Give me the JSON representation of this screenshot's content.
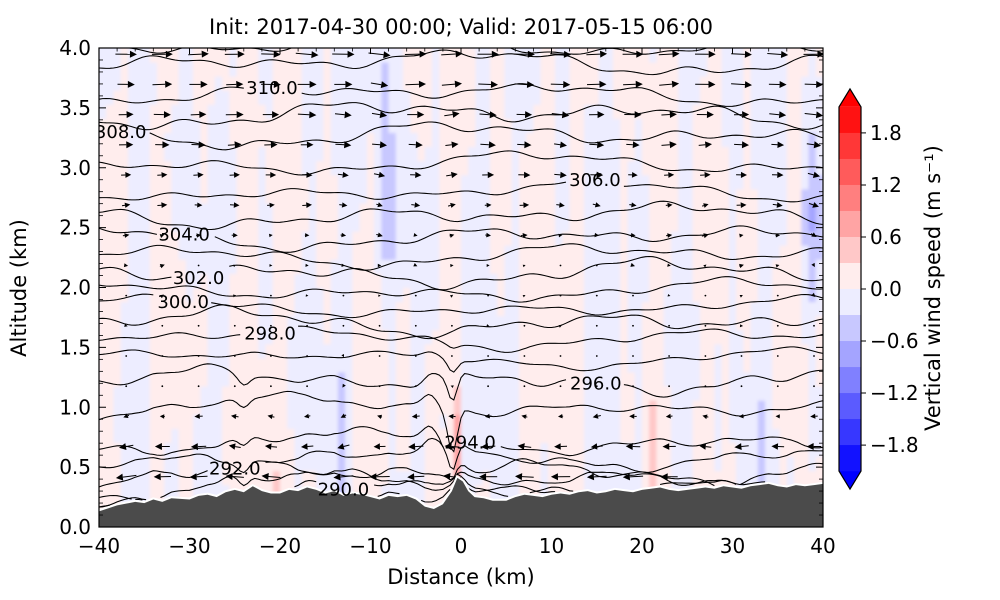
{
  "chart_data": {
    "type": "contour",
    "title": "Init: 2017-04-30 00:00; Valid: 2017-05-15 06:00",
    "xlabel": "Distance (km)",
    "ylabel": "Altitude (km)",
    "xlim": [
      -40,
      40
    ],
    "ylim": [
      0.0,
      4.0
    ],
    "grid": false,
    "xticks": {
      "values": [
        -40,
        -30,
        -20,
        -10,
        0,
        10,
        20,
        30,
        40
      ],
      "labels": [
        "−40",
        "−30",
        "−20",
        "−10",
        "0",
        "10",
        "20",
        "30",
        "40"
      ]
    },
    "yticks": {
      "values": [
        0.0,
        0.5,
        1.0,
        1.5,
        2.0,
        2.5,
        3.0,
        3.5,
        4.0
      ],
      "labels": [
        "0.0",
        "0.5",
        "1.0",
        "1.5",
        "2.0",
        "2.5",
        "3.0",
        "3.5",
        "4.0"
      ]
    },
    "contours": {
      "field": "potential temperature (K)",
      "interval": 1.0,
      "labeled_interval": 2.0,
      "level_altitudes_km": {
        "288": 0.18,
        "289": 0.24,
        "290": 0.3,
        "291": 0.375,
        "292": 0.45,
        "293": 0.57,
        "294": 0.7,
        "295": 1.0,
        "296": 1.22,
        "297": 1.41,
        "298": 1.58,
        "299": 1.71,
        "300": 1.83,
        "301": 1.97,
        "302": 2.12,
        "303": 2.27,
        "304": 2.42,
        "305": 2.6,
        "306": 2.8,
        "307": 3.03,
        "308": 3.27,
        "309": 3.45,
        "310": 3.62,
        "311": 3.88,
        "312": 4.02
      },
      "labels": [
        {
          "level": 290,
          "x_km": -13.0
        },
        {
          "level": 292,
          "x_km": -25.0
        },
        {
          "level": 294,
          "x_km": 1.0
        },
        {
          "level": 296,
          "x_km": 14.9
        },
        {
          "level": 298,
          "x_km": -21.1
        },
        {
          "level": 300,
          "x_km": -30.7
        },
        {
          "level": 302,
          "x_km": -29.0
        },
        {
          "level": 304,
          "x_km": -30.6
        },
        {
          "level": 306,
          "x_km": 14.8
        },
        {
          "level": 308,
          "x_km": -37.6
        },
        {
          "level": 310,
          "x_km": -20.9
        }
      ]
    },
    "shading": {
      "field": "vertical wind speed",
      "units": "m s⁻¹",
      "colormap": "blue-white-red",
      "level_step": 0.3,
      "vmin": -2.1,
      "vmax": 2.1,
      "features": [
        {
          "x": -8.5,
          "z": 2.7,
          "sx": 1.2,
          "sz": 0.7,
          "w": -0.5
        },
        {
          "x": -9.0,
          "z": 3.9,
          "sx": 1.0,
          "sz": 0.5,
          "w": -0.38
        },
        {
          "x": -1.6,
          "z": 0.9,
          "sx": 0.45,
          "sz": 0.28,
          "w": -0.55
        },
        {
          "x": -0.4,
          "z": 0.65,
          "sx": 0.3,
          "sz": 0.45,
          "w": 0.65
        },
        {
          "x": 39.0,
          "z": 2.5,
          "sx": 1.3,
          "sz": 0.8,
          "w": -0.5
        },
        {
          "x": 40.0,
          "z": 0.9,
          "sx": 1.2,
          "sz": 0.4,
          "w": -0.45
        }
      ]
    },
    "wind_arrows": {
      "u_profile_km_ms": [
        [
          0.42,
          -5.5
        ],
        [
          0.65,
          -4.2
        ],
        [
          0.85,
          -2.5
        ],
        [
          1.05,
          -0.8
        ],
        [
          1.3,
          0.2
        ],
        [
          1.6,
          0.3
        ],
        [
          1.9,
          0.5
        ],
        [
          2.2,
          0.9
        ],
        [
          2.5,
          1.7
        ],
        [
          2.8,
          2.8
        ],
        [
          3.1,
          3.8
        ],
        [
          3.4,
          4.8
        ],
        [
          3.7,
          5.6
        ],
        [
          4.0,
          6.3
        ]
      ],
      "x_spacing_km": 4,
      "z_spacing_km": 0.252
    },
    "terrain": {
      "color": "#4b4b4b",
      "profile_km": [
        [
          -40,
          0.13
        ],
        [
          -38,
          0.18
        ],
        [
          -36,
          0.21
        ],
        [
          -35,
          0.2
        ],
        [
          -34,
          0.23
        ],
        [
          -33,
          0.21
        ],
        [
          -32,
          0.24
        ],
        [
          -30,
          0.23
        ],
        [
          -29,
          0.26
        ],
        [
          -28,
          0.27
        ],
        [
          -27,
          0.25
        ],
        [
          -26,
          0.29
        ],
        [
          -25,
          0.31
        ],
        [
          -24,
          0.29
        ],
        [
          -23,
          0.34
        ],
        [
          -22,
          0.3
        ],
        [
          -21,
          0.28
        ],
        [
          -20,
          0.28
        ],
        [
          -19,
          0.31
        ],
        [
          -18,
          0.3
        ],
        [
          -17,
          0.33
        ],
        [
          -16,
          0.31
        ],
        [
          -15,
          0.28
        ],
        [
          -14,
          0.3
        ],
        [
          -13,
          0.26
        ],
        [
          -12,
          0.28
        ],
        [
          -11,
          0.27
        ],
        [
          -10,
          0.25
        ],
        [
          -9,
          0.23
        ],
        [
          -8,
          0.26
        ],
        [
          -7,
          0.25
        ],
        [
          -6,
          0.26
        ],
        [
          -5,
          0.23
        ],
        [
          -4,
          0.17
        ],
        [
          -3,
          0.15
        ],
        [
          -2,
          0.19
        ],
        [
          -1,
          0.3
        ],
        [
          -0.4,
          0.41
        ],
        [
          0.2,
          0.38
        ],
        [
          0.8,
          0.3
        ],
        [
          1.5,
          0.25
        ],
        [
          2.5,
          0.24
        ],
        [
          3.5,
          0.22
        ],
        [
          5,
          0.22
        ],
        [
          6,
          0.25
        ],
        [
          7,
          0.27
        ],
        [
          8,
          0.26
        ],
        [
          9,
          0.25
        ],
        [
          10,
          0.27
        ],
        [
          11,
          0.28
        ],
        [
          12,
          0.27
        ],
        [
          13,
          0.29
        ],
        [
          14,
          0.3
        ],
        [
          15,
          0.28
        ],
        [
          16,
          0.29
        ],
        [
          17,
          0.31
        ],
        [
          18,
          0.3
        ],
        [
          19,
          0.29
        ],
        [
          20,
          0.31
        ],
        [
          21,
          0.32
        ],
        [
          22,
          0.33
        ],
        [
          23,
          0.31
        ],
        [
          24,
          0.3
        ],
        [
          25,
          0.31
        ],
        [
          26,
          0.32
        ],
        [
          27,
          0.33
        ],
        [
          28,
          0.32
        ],
        [
          29,
          0.34
        ],
        [
          30,
          0.33
        ],
        [
          31,
          0.32
        ],
        [
          32,
          0.34
        ],
        [
          33,
          0.35
        ],
        [
          34,
          0.36
        ],
        [
          35,
          0.34
        ],
        [
          36,
          0.33
        ],
        [
          37,
          0.35
        ],
        [
          38,
          0.34
        ],
        [
          39,
          0.35
        ],
        [
          40,
          0.36
        ]
      ]
    },
    "colorbar": {
      "label": "Vertical wind speed (m s⁻¹)",
      "extend": "both",
      "ticks": {
        "values": [
          1.8,
          1.2,
          0.6,
          0.0,
          -0.6,
          -1.2,
          -1.8
        ],
        "labels": [
          "1.8",
          "1.2",
          "0.6",
          "0.0",
          "−0.6",
          "−1.2",
          "−1.8"
        ]
      }
    }
  }
}
